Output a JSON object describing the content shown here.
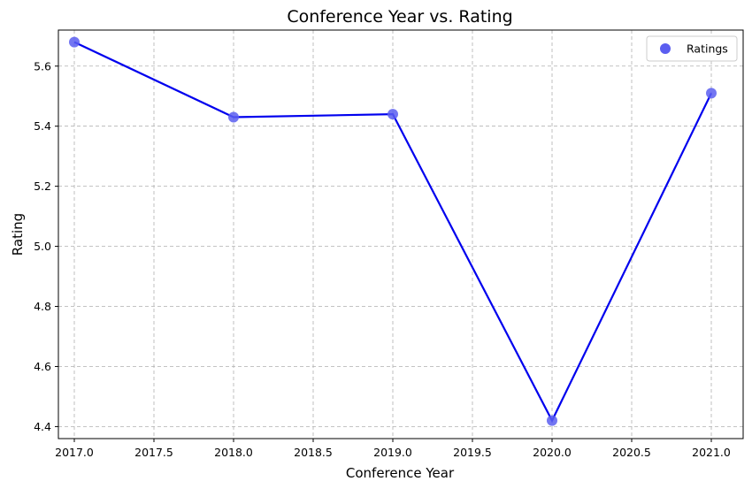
{
  "chart_data": {
    "type": "line",
    "title": "Conference Year vs. Rating",
    "xlabel": "Conference Year",
    "ylabel": "Rating",
    "xlim": [
      2016.9,
      2021.2
    ],
    "ylim": [
      4.36,
      5.72
    ],
    "x_ticks": [
      2017.0,
      2017.5,
      2018.0,
      2018.5,
      2019.0,
      2019.5,
      2020.0,
      2020.5,
      2021.0
    ],
    "x_tick_labels": [
      "2017.0",
      "2017.5",
      "2018.0",
      "2018.5",
      "2019.0",
      "2019.5",
      "2020.0",
      "2020.5",
      "2021.0"
    ],
    "y_ticks": [
      4.4,
      4.6,
      4.8,
      5.0,
      5.2,
      5.4,
      5.6
    ],
    "y_tick_labels": [
      "4.4",
      "4.6",
      "4.8",
      "5.0",
      "5.2",
      "5.4",
      "5.6"
    ],
    "grid": true,
    "legend_position": "top-right",
    "series": [
      {
        "name": "Ratings",
        "x": [
          2017,
          2018,
          2019,
          2020,
          2021
        ],
        "y": [
          5.68,
          5.43,
          5.44,
          4.42,
          5.51
        ],
        "line_color": "#0000ee",
        "marker_color": "#5b5ef0"
      }
    ]
  }
}
